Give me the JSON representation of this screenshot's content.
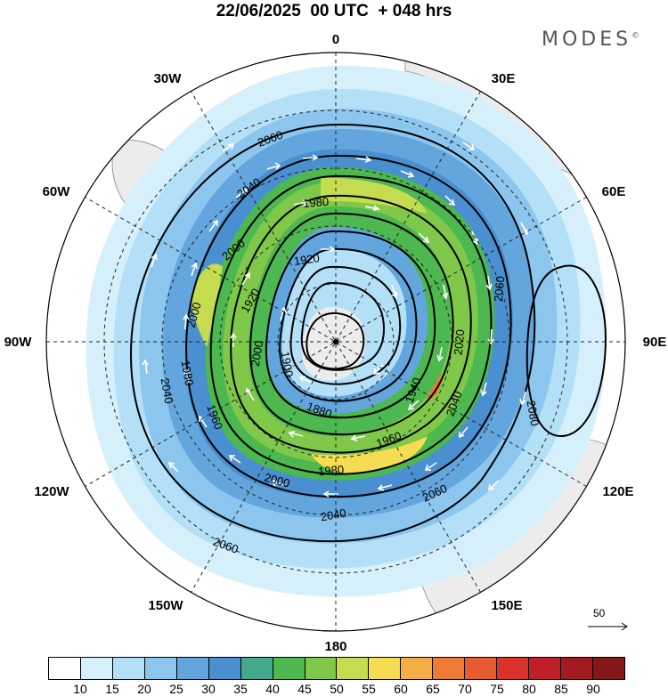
{
  "title": "22/06/2025  00 UTC  + 048 hrs",
  "brand": "MODES",
  "brand_mark": "©",
  "longitude_labels": {
    "l0": "0",
    "l30e": "30E",
    "l60e": "60E",
    "l90e": "90E",
    "l120e": "120E",
    "l150e": "150E",
    "l180": "180",
    "l150w": "150W",
    "l120w": "120W",
    "l90w": "90W",
    "l60w": "60W",
    "l30w": "30W"
  },
  "contour_labels": [
    "2060",
    "2040",
    "1980",
    "2000",
    "1920",
    "1920",
    "2000",
    "2000",
    "1980",
    "1900",
    "1880",
    "1940",
    "2020",
    "2040",
    "1960",
    "1980",
    "2000",
    "2040",
    "2060",
    "2060",
    "2080",
    "2060",
    "2040",
    "1960"
  ],
  "colorbar": {
    "ticks": [
      "10",
      "15",
      "20",
      "25",
      "30",
      "35",
      "40",
      "45",
      "50",
      "55",
      "60",
      "65",
      "70",
      "75",
      "80",
      "85",
      "90"
    ],
    "colors": [
      "#ffffff",
      "#d6f0fb",
      "#b3e0f7",
      "#8cc6ee",
      "#63a6de",
      "#4a8fcf",
      "#44a88c",
      "#4cb84f",
      "#7fc84a",
      "#c5dc4f",
      "#f6dc50",
      "#f4ae45",
      "#ee7a35",
      "#e85a30",
      "#d9332b",
      "#bf2027",
      "#a31a21",
      "#861719"
    ]
  },
  "reference_vector": "50"
}
